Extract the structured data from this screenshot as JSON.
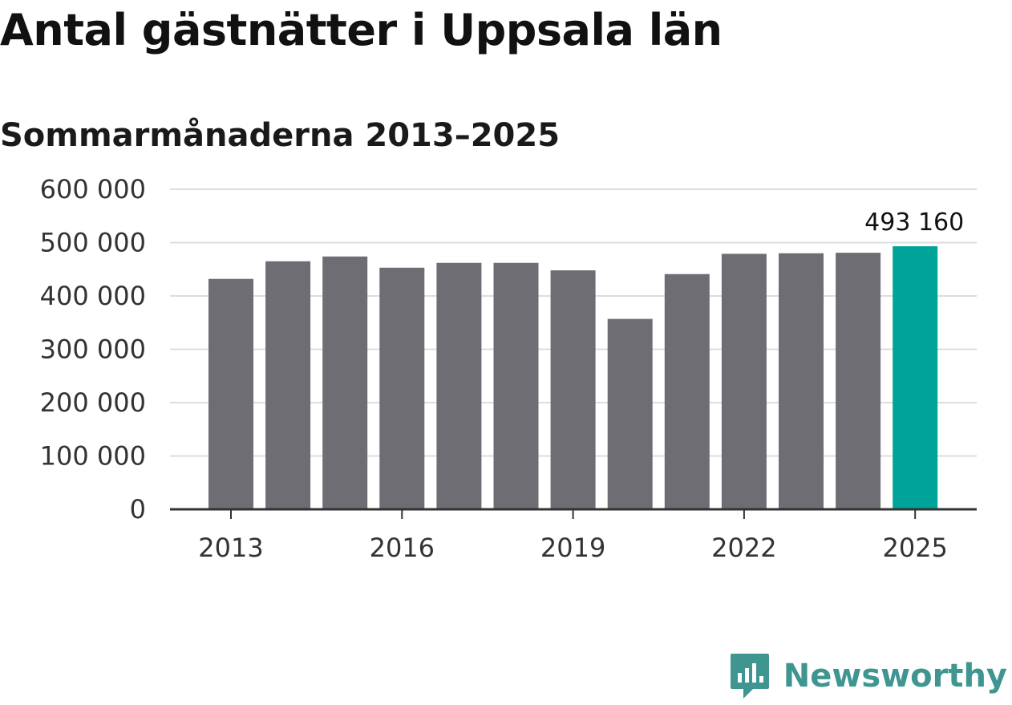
{
  "title": "Antal gästnätter i Uppsala län",
  "subtitle": "Sommarmånaderna 2013–2025",
  "brand": {
    "name": "Newsworthy",
    "color": "#3f9590"
  },
  "colors": {
    "bar": "#6e6d73",
    "highlight": "#00a398",
    "grid": "#dddddd",
    "axis": "#333333"
  },
  "chart_data": {
    "type": "bar",
    "categories": [
      "2013",
      "2014",
      "2015",
      "2016",
      "2017",
      "2018",
      "2019",
      "2020",
      "2021",
      "2022",
      "2023",
      "2024",
      "2025"
    ],
    "values": [
      432000,
      465000,
      474000,
      453000,
      462000,
      462000,
      448000,
      357000,
      441000,
      479000,
      480000,
      481000,
      493160
    ],
    "highlight_index": 12,
    "value_label": "493 160",
    "ylim": [
      0,
      600000
    ],
    "yticks": [
      0,
      100000,
      200000,
      300000,
      400000,
      500000,
      600000
    ],
    "ytick_labels": [
      "0",
      "100 000",
      "200 000",
      "300 000",
      "400 000",
      "500 000",
      "600 000"
    ],
    "xtick_labels": [
      "2013",
      "2016",
      "2019",
      "2022",
      "2025"
    ],
    "xlabel": "",
    "ylabel": "",
    "grid": true
  }
}
